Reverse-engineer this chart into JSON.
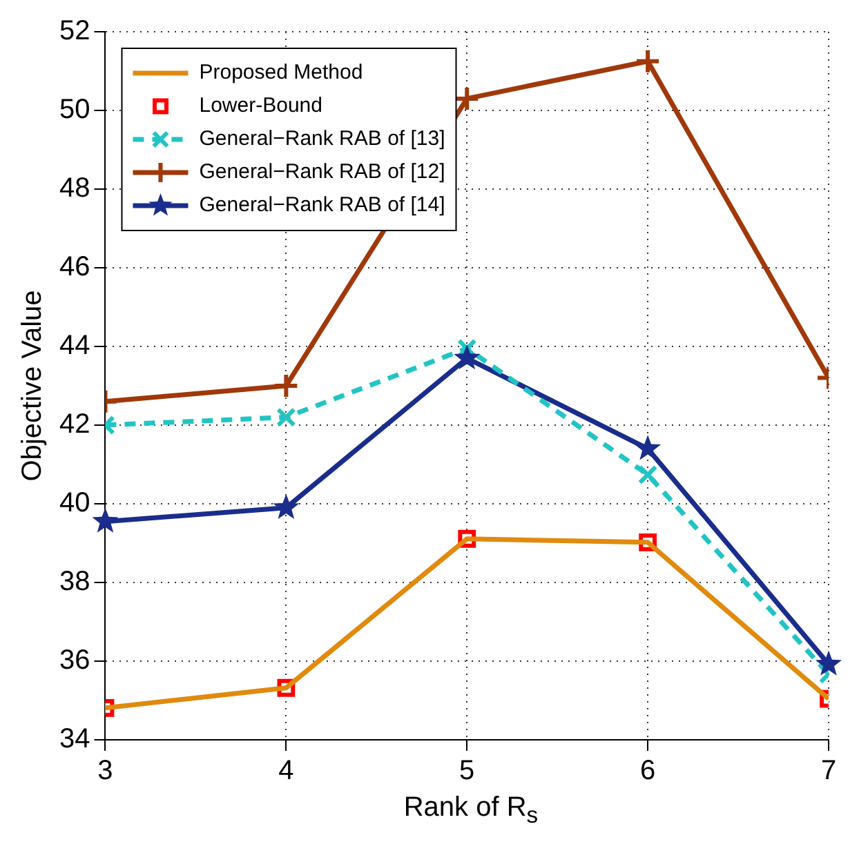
{
  "chart_data": {
    "type": "line",
    "xlabel": "Rank of R$_{s}$",
    "ylabel": "Objective Value",
    "x": [
      3,
      4,
      5,
      6,
      7
    ],
    "series": [
      {
        "name": "Proposed Method",
        "color": "#e08a0e",
        "values": [
          34.81,
          35.32,
          39.11,
          39.02,
          35.04
        ],
        "marker": "none",
        "line_style": "solid"
      },
      {
        "name": "Lower-Bound",
        "type": "scatter",
        "color": "#ff0000",
        "values": [
          34.81,
          35.32,
          39.11,
          39.02,
          35.04
        ],
        "marker": "square"
      },
      {
        "name": "General−Rank RAB of [13]",
        "color": "#22c4c4",
        "values": [
          42.0,
          42.2,
          43.95,
          40.74,
          35.67
        ],
        "marker": "cross",
        "line_style": "dashed"
      },
      {
        "name": "General−Rank RAB of [12]",
        "color": "#a0380a",
        "values": [
          42.6,
          43.0,
          50.3,
          51.25,
          43.2
        ],
        "marker": "plus",
        "line_style": "solid"
      },
      {
        "name": "General−Rank RAB of [14]",
        "color": "#1a2d8c",
        "values": [
          39.55,
          39.9,
          43.7,
          41.4,
          35.92
        ],
        "marker": "star",
        "line_style": "solid"
      }
    ],
    "xlim": [
      3,
      7
    ],
    "xticks": [
      3,
      4,
      5,
      6,
      7
    ],
    "ylim": [
      34,
      52
    ],
    "yticks": [
      34,
      36,
      38,
      40,
      42,
      44,
      46,
      48,
      50,
      52
    ],
    "grid": true,
    "legend": "top left"
  }
}
